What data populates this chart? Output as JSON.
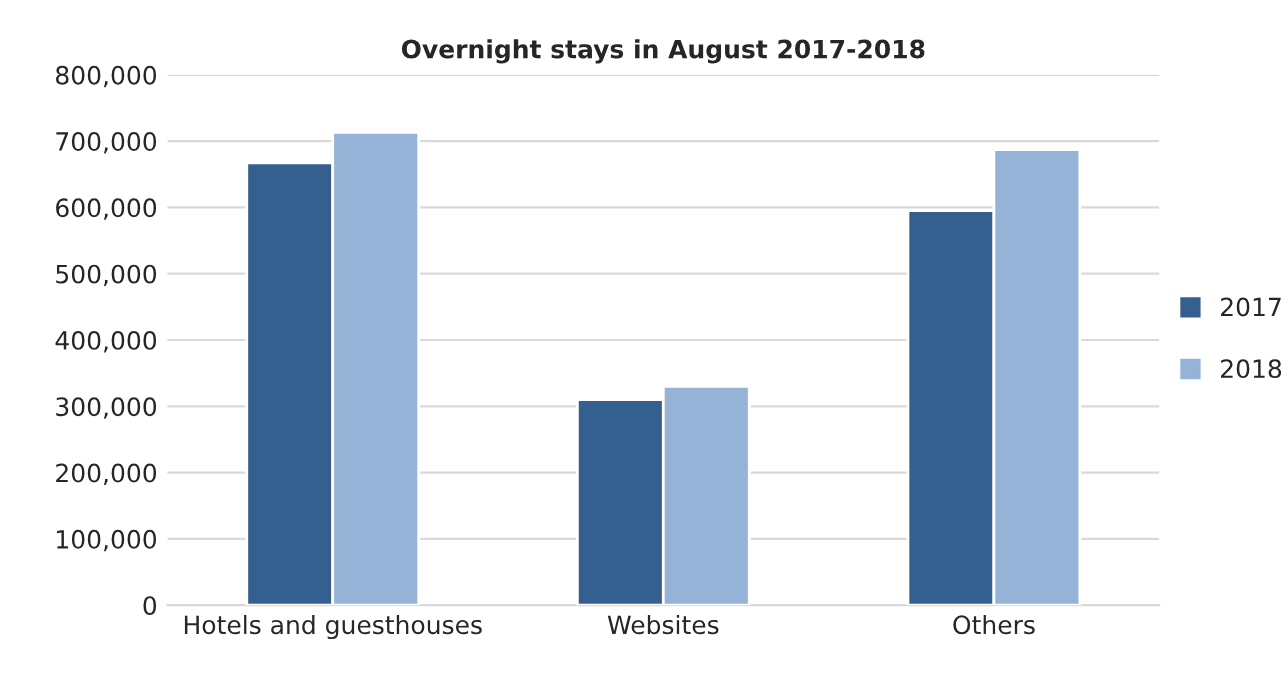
{
  "chart_data": {
    "type": "bar",
    "title": "Overnight stays in August 2017-2018",
    "categories": [
      "Hotels and guesthouses",
      "Websites",
      "Others"
    ],
    "series": [
      {
        "name": "2017",
        "color": "#355f8f",
        "values": [
          667000,
          310000,
          595000
        ]
      },
      {
        "name": "2018",
        "color": "#95b3d7",
        "values": [
          713000,
          330000,
          687000
        ]
      }
    ],
    "ylim": [
      0,
      800000
    ],
    "yticks": [
      {
        "value": 0,
        "label": "0"
      },
      {
        "value": 100000,
        "label": "100,000"
      },
      {
        "value": 200000,
        "label": "200,000"
      },
      {
        "value": 300000,
        "label": "300,000"
      },
      {
        "value": 400000,
        "label": "400,000"
      },
      {
        "value": 500000,
        "label": "500,000"
      },
      {
        "value": 600000,
        "label": "600,000"
      },
      {
        "value": 700000,
        "label": "700,000"
      },
      {
        "value": 800000,
        "label": "800,000"
      }
    ],
    "grid": "y",
    "legend": "right"
  }
}
